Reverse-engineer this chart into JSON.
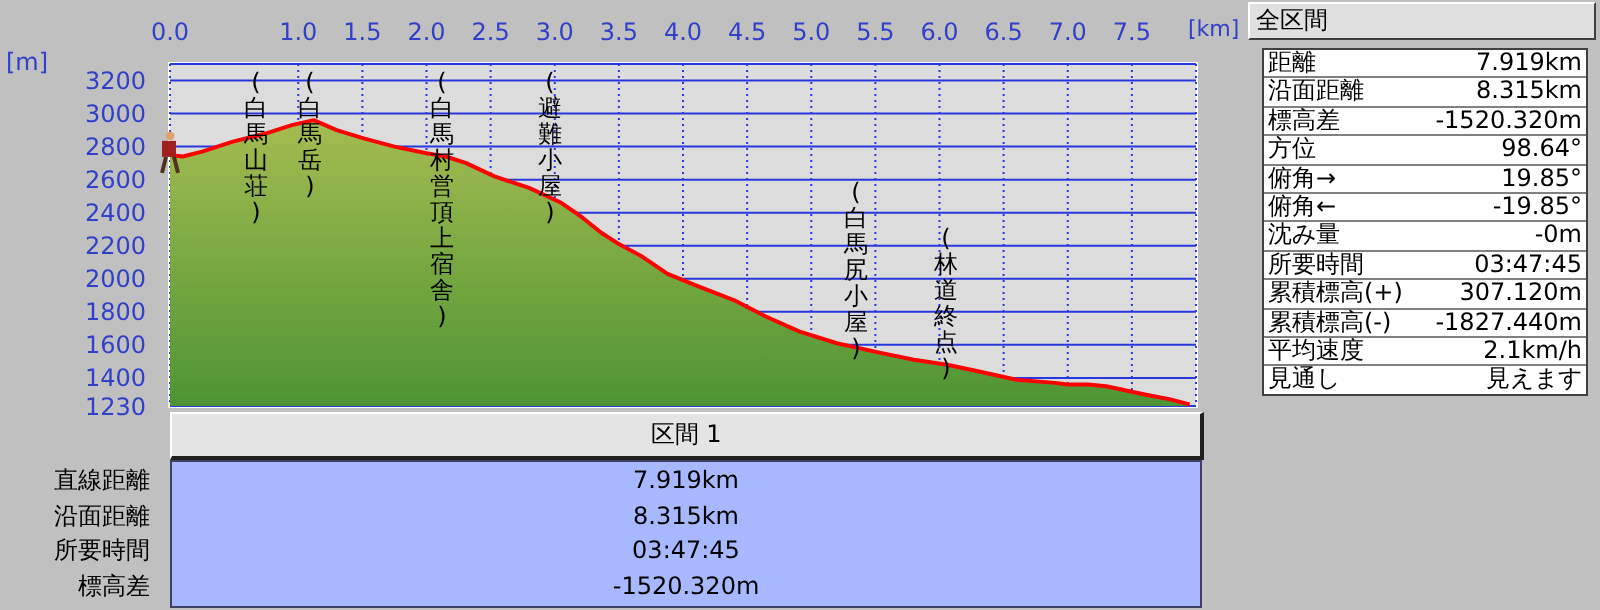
{
  "chart_data": [
    {
      "type": "area",
      "xlabel": "[km]",
      "ylabel": "[m]",
      "xlim": [
        0,
        8
      ],
      "ylim": [
        1230,
        3300
      ],
      "xticks": [
        {
          "value": 0,
          "label": "0.0"
        },
        {
          "value": 1,
          "label": "1.0"
        },
        1.5,
        {
          "value": 2,
          "label": "2.0"
        },
        2.5,
        {
          "value": 3,
          "label": "3.0"
        },
        3.5,
        {
          "value": 4,
          "label": "4.0"
        },
        4.5,
        {
          "value": 5,
          "label": "5.0"
        },
        5.5,
        {
          "value": 6,
          "label": "6.0"
        },
        6.5,
        {
          "value": 7,
          "label": "7.0"
        },
        7.5
      ],
      "yticks": [
        1230,
        1400,
        1600,
        1800,
        2000,
        2200,
        2400,
        2600,
        2800,
        3000,
        3200
      ],
      "grid": true,
      "series": [
        {
          "type": "area",
          "color": "#4e9434",
          "x": [
            0,
            0.1,
            0.25,
            0.49,
            0.75,
            0.95,
            1.12,
            1.3,
            1.51,
            1.75,
            2.0,
            2.15,
            2.31,
            2.53,
            2.8,
            3.05,
            3.2,
            3.36,
            3.5,
            3.67,
            3.88,
            4.1,
            4.4,
            4.65,
            4.91,
            5.2,
            5.55,
            5.8,
            6.06,
            6.3,
            6.59,
            6.9,
            7.0,
            7.16,
            7.3,
            7.42,
            7.6,
            7.8,
            7.95
          ],
          "values": [
            2750,
            2740,
            2770,
            2830,
            2880,
            2930,
            2960,
            2900,
            2850,
            2800,
            2760,
            2740,
            2700,
            2620,
            2550,
            2460,
            2380,
            2280,
            2210,
            2140,
            2030,
            1960,
            1870,
            1770,
            1680,
            1610,
            1550,
            1510,
            1480,
            1440,
            1390,
            1370,
            1360,
            1360,
            1350,
            1330,
            1300,
            1270,
            1240
          ]
        }
      ],
      "annotations": [
        "(白馬山荘)",
        "(白馬岳)",
        "(白馬村営頂上宿舎)",
        "(避難小屋)",
        "(白馬尻小屋)",
        "(林道終点)"
      ]
    },
    {
      "type": "other",
      "title": "全区間",
      "annotations": [
        "距離",
        "7.919km",
        "沿面距離",
        "8.315km",
        "標高差",
        "-1520.320m",
        "方位",
        "98.64°",
        "俯角→",
        "19.85°",
        "俯角←",
        "-19.85°",
        "沈み量",
        "-0m",
        "所要時間",
        "03:47:45",
        "累積標高(+)",
        "307.120m",
        "累積標高(-)",
        "-1827.440m",
        "平均速度",
        "2.1km/h",
        "見通し",
        "見えます"
      ]
    },
    {
      "type": "other",
      "title": "区間 1",
      "annotations": [
        "直線距離",
        "7.919km",
        "沿面距離",
        "8.315km",
        "所要時間",
        "03:47:45",
        "標高差",
        "-1520.320m"
      ]
    }
  ]
}
